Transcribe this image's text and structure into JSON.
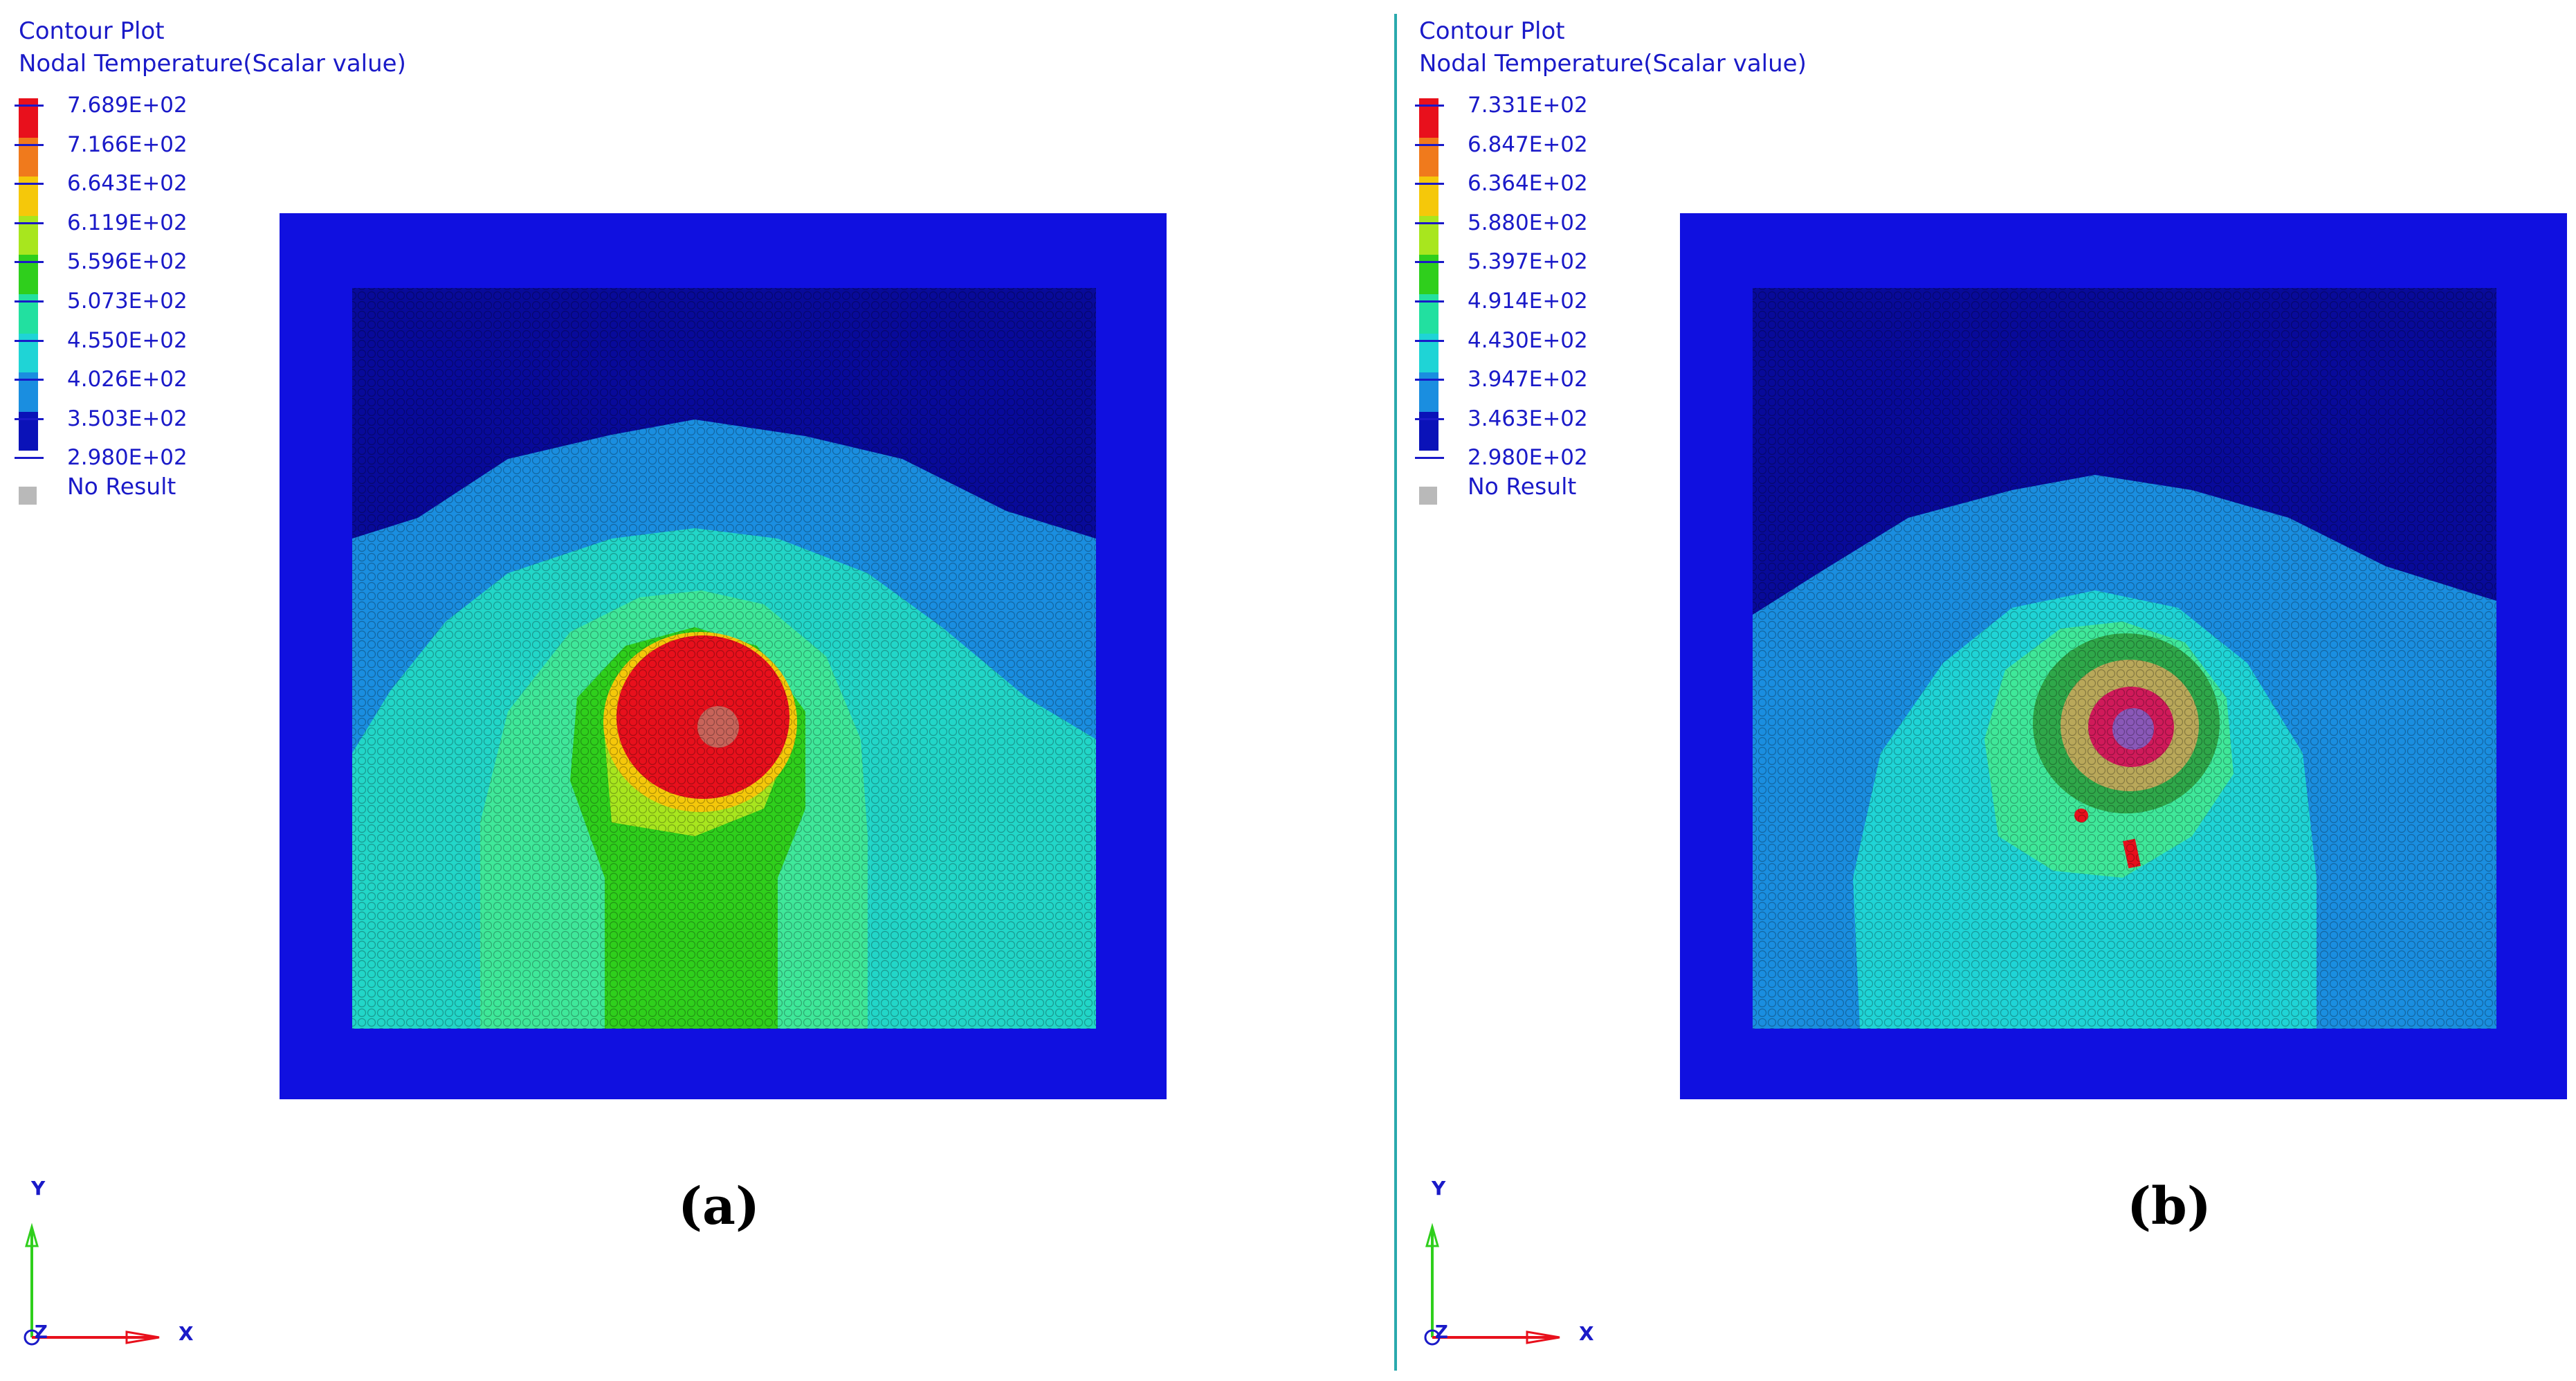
{
  "panels": [
    {
      "id": "a",
      "title_line1": "Contour Plot",
      "title_line2": "Nodal Temperature(Scalar value)",
      "legend_values": [
        "7.689E+02",
        "7.166E+02",
        "6.643E+02",
        "6.119E+02",
        "5.596E+02",
        "5.073E+02",
        "4.550E+02",
        "4.026E+02",
        "3.503E+02",
        "2.980E+02"
      ],
      "no_result_label": "No Result",
      "caption": "(a)",
      "axis_labels": {
        "y": "Y",
        "x": "X",
        "z": "Z"
      }
    },
    {
      "id": "b",
      "title_line1": "Contour Plot",
      "title_line2": "Nodal Temperature(Scalar value)",
      "legend_values": [
        "7.331E+02",
        "6.847E+02",
        "6.364E+02",
        "5.880E+02",
        "5.397E+02",
        "4.914E+02",
        "4.430E+02",
        "3.947E+02",
        "3.463E+02",
        "2.980E+02"
      ],
      "no_result_label": "No Result",
      "caption": "(b)",
      "axis_labels": {
        "y": "Y",
        "x": "X",
        "z": "Z"
      }
    }
  ],
  "legend_colors": [
    "#e8101c",
    "#f07a1c",
    "#f5c80a",
    "#a8e61e",
    "#2fcf1c",
    "#22e0a0",
    "#1fd4d6",
    "#1a8ee0",
    "#0f43d8",
    "#0a12b8"
  ],
  "colors": {
    "frame_blue": "#1010e0",
    "box_navy": "#080a9a",
    "divider": "#2aa9ad",
    "text_blue": "#1a1ac8",
    "no_result_grey": "#b9b9b9"
  }
}
